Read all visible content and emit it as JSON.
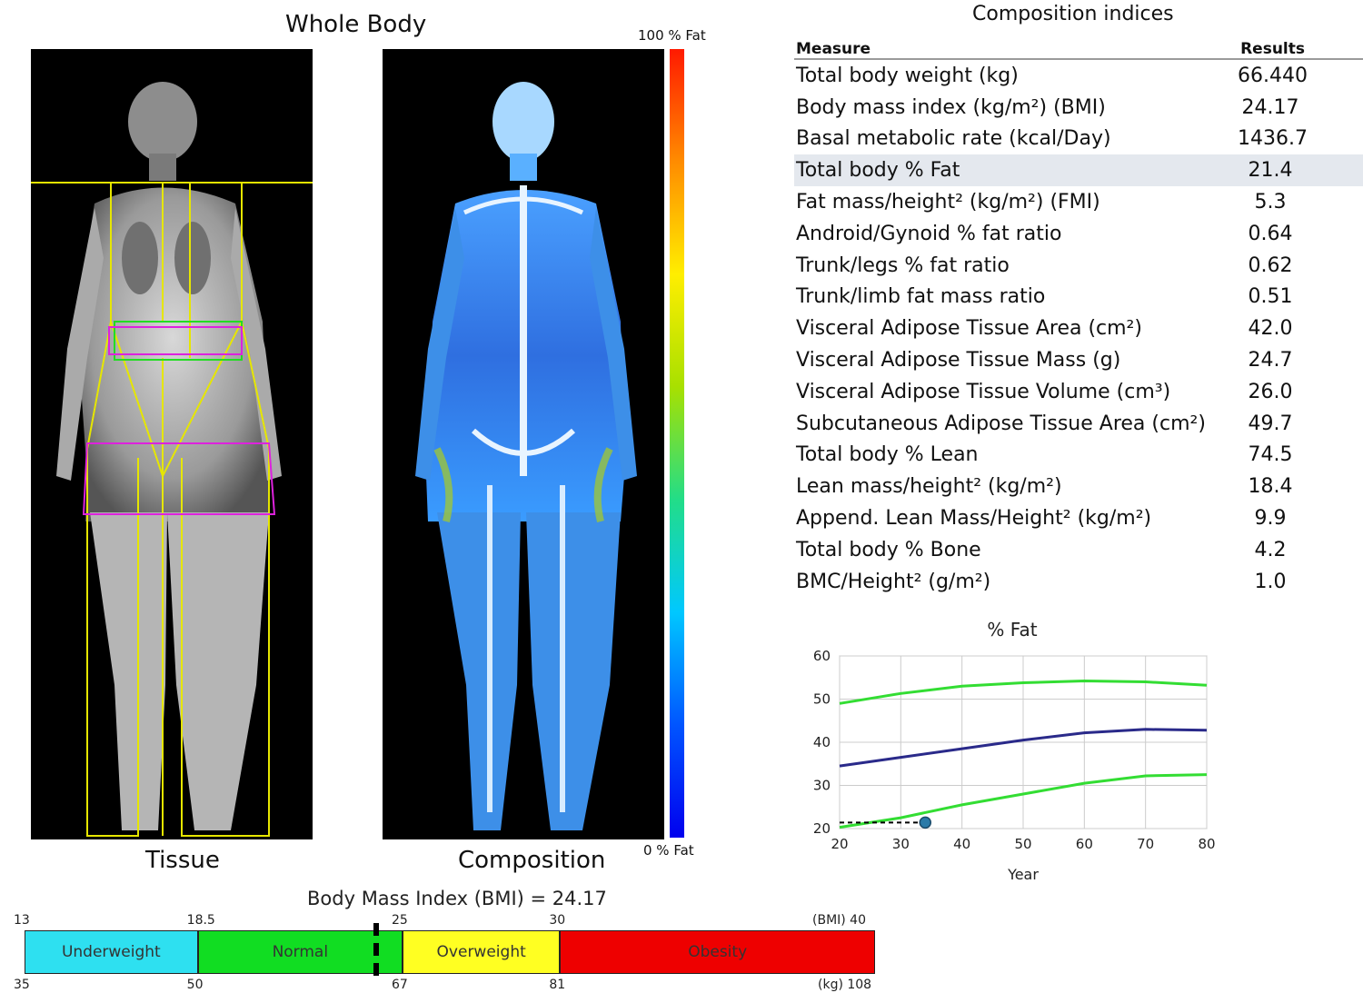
{
  "left": {
    "title": "Whole Body",
    "tissue_caption": "Tissue",
    "composition_caption": "Composition",
    "scale_top": "100 % Fat",
    "scale_bottom": "0 % Fat"
  },
  "table": {
    "title": "Composition indices",
    "col_measure": "Measure",
    "col_results": "Results",
    "rows": [
      {
        "measure": "Total body weight (kg)",
        "result": "66.440"
      },
      {
        "measure": "Body mass index (kg/m²) (BMI)",
        "result": "24.17"
      },
      {
        "measure": "Basal metabolic rate (kcal/Day)",
        "result": "1436.7"
      },
      {
        "measure": "Total body % Fat",
        "result": "21.4"
      },
      {
        "measure": "Fat mass/height² (kg/m²) (FMI)",
        "result": "5.3"
      },
      {
        "measure": "Android/Gynoid % fat ratio",
        "result": "0.64"
      },
      {
        "measure": "Trunk/legs % fat ratio",
        "result": "0.62"
      },
      {
        "measure": "Trunk/limb fat mass ratio",
        "result": "0.51"
      },
      {
        "measure": "Visceral Adipose Tissue Area (cm²)",
        "result": "42.0"
      },
      {
        "measure": "Visceral Adipose Tissue Mass (g)",
        "result": "24.7"
      },
      {
        "measure": "Visceral Adipose Tissue Volume (cm³)",
        "result": "26.0"
      },
      {
        "measure": "Subcutaneous Adipose Tissue Area (cm²)",
        "result": "49.7"
      },
      {
        "measure": "Total body % Lean",
        "result": "74.5"
      },
      {
        "measure": "Lean mass/height² (kg/m²)",
        "result": "18.4"
      },
      {
        "measure": "Append. Lean Mass/Height² (kg/m²)",
        "result": "9.9"
      },
      {
        "measure": "Total body % Bone",
        "result": "4.2"
      },
      {
        "measure": "BMC/Height² (g/m²)",
        "result": "1.0"
      }
    ]
  },
  "chart_data": {
    "type": "line",
    "title": "% Fat",
    "xlabel": "Year",
    "ylabel": "",
    "xlim": [
      20,
      80
    ],
    "ylim": [
      20,
      60
    ],
    "xticks": [
      20,
      30,
      40,
      50,
      60,
      70,
      80
    ],
    "yticks": [
      20,
      30,
      40,
      50,
      60
    ],
    "grid": true,
    "series": [
      {
        "color": "#33dd33",
        "x": [
          20,
          30,
          40,
          50,
          60,
          70,
          80
        ],
        "y": [
          49,
          51.3,
          53,
          53.8,
          54.2,
          54,
          53.2
        ]
      },
      {
        "color": "#2a2a8a",
        "x": [
          20,
          30,
          40,
          50,
          60,
          70,
          80
        ],
        "y": [
          34.5,
          36.5,
          38.5,
          40.5,
          42.2,
          43,
          42.8
        ]
      },
      {
        "color": "#33dd33",
        "x": [
          20,
          30,
          40,
          50,
          60,
          70,
          80
        ],
        "y": [
          20.3,
          22.5,
          25.5,
          28,
          30.5,
          32.2,
          32.5
        ]
      }
    ],
    "marker": {
      "x": 34,
      "y": 21.4,
      "color": "#2a7aa8"
    }
  },
  "bmi": {
    "title": "Body Mass Index (BMI) = 24.17",
    "value": 24.17,
    "min": 13,
    "max": 40,
    "segments": [
      {
        "label": "Underweight",
        "from": 13,
        "to": 18.5,
        "color": "#2ee0f0"
      },
      {
        "label": "Normal",
        "from": 18.5,
        "to": 25,
        "color": "#11dd22"
      },
      {
        "label": "Overweight",
        "from": 25,
        "to": 30,
        "color": "#ffff22"
      },
      {
        "label": "Obesity",
        "from": 30,
        "to": 40,
        "color": "#ee0000"
      }
    ],
    "top_ticks": [
      "13",
      "18.5",
      "25",
      "30"
    ],
    "top_end": "(BMI) 40",
    "bottom_ticks": [
      "35",
      "50",
      "67",
      "81"
    ],
    "bottom_end": "(kg) 108"
  }
}
